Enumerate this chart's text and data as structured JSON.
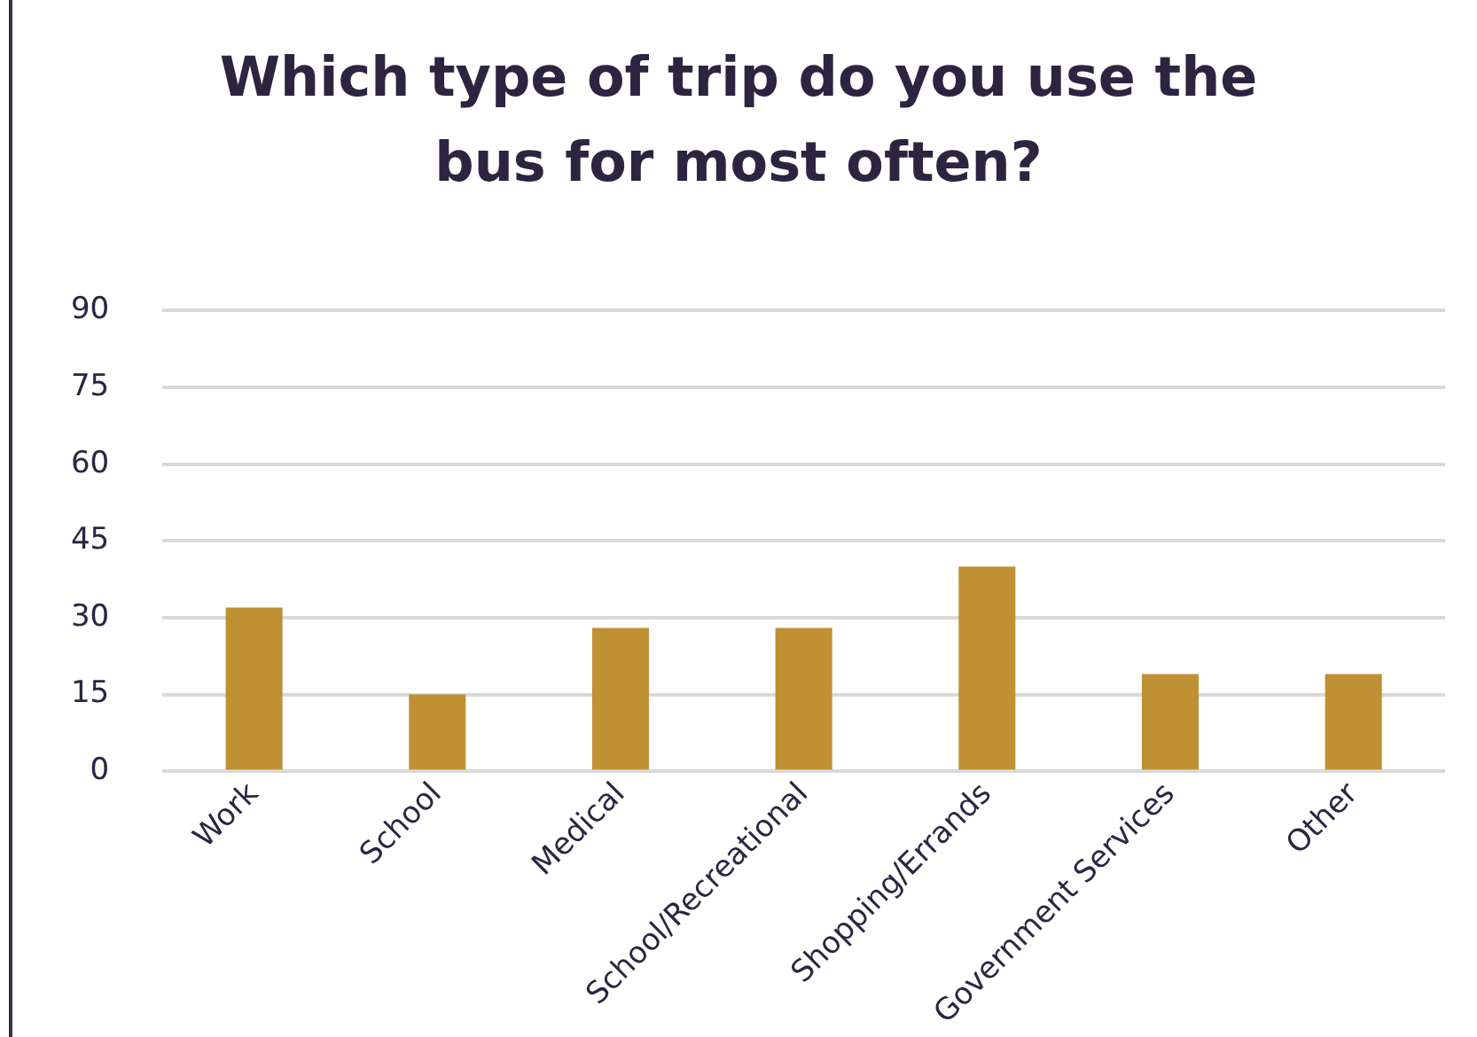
{
  "chart_data": {
    "type": "bar",
    "title": "Which type of trip do you use the bus for most often?",
    "categories": [
      "Work",
      "School",
      "Medical",
      "School/Recreational",
      "Shopping/Errands",
      "Government Services",
      "Other"
    ],
    "values": [
      32,
      15,
      28,
      28,
      40,
      19,
      19
    ],
    "color": "#bf9034",
    "ylim": [
      0,
      90
    ],
    "yticks": [
      0,
      15,
      30,
      45,
      60,
      75,
      90
    ],
    "grid": "y"
  }
}
